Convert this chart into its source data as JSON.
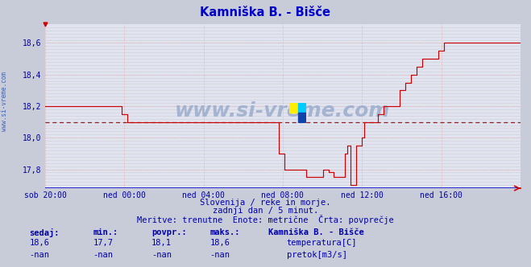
{
  "title": "Kamniška B. - Bišče",
  "subtitle1": "Slovenija / reke in morje.",
  "subtitle2": "zadnji dan / 5 minut.",
  "subtitle3": "Meritve: trenutne  Enote: metrične  Črta: povprečje",
  "bg_color": "#c8ccd8",
  "plot_bg_color": "#e0e4f0",
  "line_color": "#cc0000",
  "avg_line_color": "#800000",
  "axis_color": "#0000aa",
  "title_color": "#0000cc",
  "text_color": "#0000aa",
  "watermark_color": "#9aaccc",
  "grid_h_color": "#e8b0b0",
  "grid_v_color": "#e8b0b0",
  "minor_grid_color": "#d4cece",
  "border_color": "#7070a0",
  "ylim": [
    17.68,
    18.72
  ],
  "yticks": [
    17.8,
    18.0,
    18.2,
    18.4,
    18.6
  ],
  "ylabel_values": [
    "17,8",
    "18,0",
    "18,2",
    "18,4",
    "18,6"
  ],
  "avg_value": 18.1,
  "xtick_labels": [
    "sob 20:00",
    "ned 00:00",
    "ned 04:00",
    "ned 08:00",
    "ned 12:00",
    "ned 16:00"
  ],
  "xtick_positions": [
    0,
    288,
    576,
    864,
    1152,
    1440
  ],
  "total_points": 1728,
  "sedaj_label": "sedaj:",
  "min_label": "min.:",
  "povpr_label": "povpr.:",
  "maks_label": "maks.:",
  "station_label": "Kamniška B. - Bišče",
  "sedaj_val": "18,6",
  "min_val": "17,7",
  "povpr_val": "18,1",
  "maks_val": "18,6",
  "nan_val": "-nan",
  "legend1": "temperatura[C]",
  "legend2": "pretok[m3/s]",
  "legend1_color": "#cc0000",
  "legend2_color": "#00aa00",
  "temp_data": [
    [
      0,
      18.2
    ],
    [
      276,
      18.2
    ],
    [
      277,
      18.15
    ],
    [
      300,
      18.1
    ],
    [
      576,
      18.1
    ],
    [
      577,
      18.1
    ],
    [
      850,
      18.1
    ],
    [
      851,
      17.9
    ],
    [
      870,
      17.8
    ],
    [
      900,
      17.8
    ],
    [
      950,
      17.75
    ],
    [
      970,
      17.75
    ],
    [
      1000,
      17.75
    ],
    [
      1010,
      17.8
    ],
    [
      1030,
      17.78
    ],
    [
      1050,
      17.75
    ],
    [
      1060,
      17.75
    ],
    [
      1080,
      17.75
    ],
    [
      1090,
      17.9
    ],
    [
      1100,
      17.95
    ],
    [
      1110,
      17.7
    ],
    [
      1115,
      17.7
    ],
    [
      1130,
      17.95
    ],
    [
      1150,
      18.0
    ],
    [
      1160,
      18.1
    ],
    [
      1200,
      18.1
    ],
    [
      1210,
      18.15
    ],
    [
      1230,
      18.2
    ],
    [
      1270,
      18.2
    ],
    [
      1290,
      18.3
    ],
    [
      1310,
      18.35
    ],
    [
      1330,
      18.4
    ],
    [
      1350,
      18.45
    ],
    [
      1370,
      18.5
    ],
    [
      1400,
      18.5
    ],
    [
      1430,
      18.55
    ],
    [
      1450,
      18.6
    ],
    [
      1500,
      18.6
    ],
    [
      1728,
      18.6
    ]
  ]
}
